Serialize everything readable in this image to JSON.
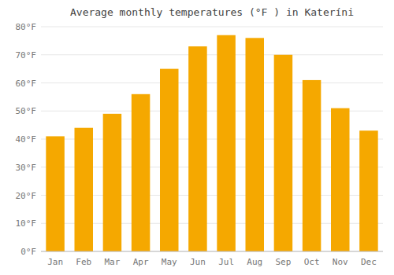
{
  "chart_data": {
    "type": "bar",
    "title": "Average monthly temperatures (°F ) in Kateríni",
    "categories": [
      "Jan",
      "Feb",
      "Mar",
      "Apr",
      "May",
      "Jun",
      "Jul",
      "Aug",
      "Sep",
      "Oct",
      "Nov",
      "Dec"
    ],
    "values": [
      41,
      44,
      49,
      56,
      65,
      73,
      77,
      76,
      70,
      61,
      51,
      43
    ],
    "color": "#F5A800",
    "ylim": [
      0,
      80
    ],
    "yticks": [
      {
        "value": 0,
        "label": "0°F"
      },
      {
        "value": 10,
        "label": "10°F"
      },
      {
        "value": 20,
        "label": "20°F"
      },
      {
        "value": 30,
        "label": "30°F"
      },
      {
        "value": 40,
        "label": "40°F"
      },
      {
        "value": 50,
        "label": "50°F"
      },
      {
        "value": 60,
        "label": "60°F"
      },
      {
        "value": 70,
        "label": "70°F"
      },
      {
        "value": 80,
        "label": "80°F"
      }
    ],
    "grid": true
  }
}
